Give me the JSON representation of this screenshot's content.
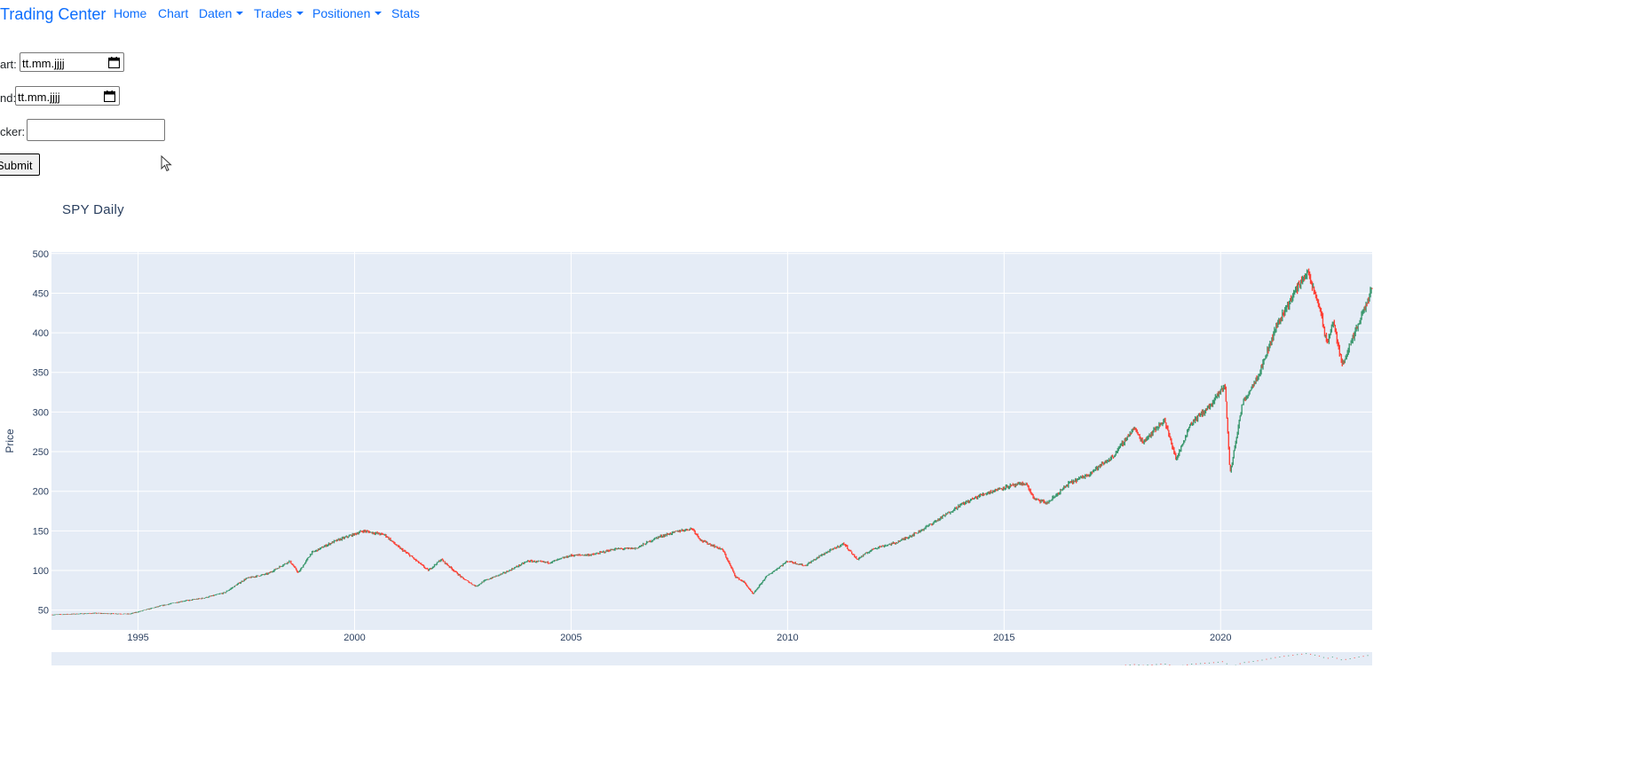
{
  "navbar": {
    "brand": "Trading Center",
    "items": [
      {
        "label": "Home",
        "dropdown": false
      },
      {
        "label": "Chart",
        "dropdown": false
      },
      {
        "label": "Daten",
        "dropdown": true
      },
      {
        "label": "Trades",
        "dropdown": true
      },
      {
        "label": "Positionen",
        "dropdown": true
      },
      {
        "label": "Stats",
        "dropdown": false
      }
    ]
  },
  "form": {
    "start_label": "art:",
    "start_value": "tt.mm.jjjj",
    "end_label": "nd:",
    "end_value": "tt.mm.jjjj",
    "ticker_label": "cker:",
    "ticker_value": "",
    "submit_label": "Submit"
  },
  "colors": {
    "increasing": "#3d9970",
    "decreasing": "#ff4136",
    "plot_bg": "#e5ecf6",
    "link": "#0d6efd",
    "axis_text": "#2a3f5f"
  },
  "chart_data": {
    "type": "candlestick",
    "title": "SPY Daily",
    "ylabel": "Price",
    "xlabel": "",
    "x_range": [
      1993.0,
      2023.5
    ],
    "ylim": [
      25,
      502
    ],
    "x_ticks": [
      {
        "value": 1995,
        "label": "1995"
      },
      {
        "value": 2000,
        "label": "2000"
      },
      {
        "value": 2005,
        "label": "2005"
      },
      {
        "value": 2010,
        "label": "2010"
      },
      {
        "value": 2015,
        "label": "2015"
      },
      {
        "value": 2020,
        "label": "2020"
      }
    ],
    "y_ticks": [
      50,
      100,
      150,
      200,
      250,
      300,
      350,
      400,
      450,
      500
    ],
    "grid": true,
    "legend": false,
    "rangeslider": true,
    "price_path": [
      [
        1993.0,
        44
      ],
      [
        1994.0,
        46
      ],
      [
        1994.8,
        45
      ],
      [
        1995.5,
        55
      ],
      [
        1996.0,
        61
      ],
      [
        1996.5,
        65
      ],
      [
        1997.0,
        72
      ],
      [
        1997.5,
        90
      ],
      [
        1998.0,
        96
      ],
      [
        1998.5,
        112
      ],
      [
        1998.7,
        97
      ],
      [
        1999.0,
        122
      ],
      [
        1999.5,
        136
      ],
      [
        1999.9,
        144
      ],
      [
        2000.2,
        150
      ],
      [
        2000.7,
        145
      ],
      [
        2001.0,
        130
      ],
      [
        2001.3,
        118
      ],
      [
        2001.7,
        100
      ],
      [
        2002.0,
        114
      ],
      [
        2002.5,
        90
      ],
      [
        2002.8,
        80
      ],
      [
        2003.0,
        87
      ],
      [
        2003.5,
        98
      ],
      [
        2004.0,
        112
      ],
      [
        2004.5,
        110
      ],
      [
        2005.0,
        119
      ],
      [
        2005.5,
        120
      ],
      [
        2006.0,
        127
      ],
      [
        2006.5,
        128
      ],
      [
        2007.0,
        142
      ],
      [
        2007.5,
        150
      ],
      [
        2007.8,
        153
      ],
      [
        2008.0,
        138
      ],
      [
        2008.5,
        126
      ],
      [
        2008.8,
        92
      ],
      [
        2009.0,
        85
      ],
      [
        2009.2,
        70
      ],
      [
        2009.5,
        92
      ],
      [
        2010.0,
        112
      ],
      [
        2010.4,
        106
      ],
      [
        2010.8,
        120
      ],
      [
        2011.3,
        134
      ],
      [
        2011.6,
        114
      ],
      [
        2012.0,
        128
      ],
      [
        2012.5,
        135
      ],
      [
        2013.0,
        148
      ],
      [
        2013.5,
        165
      ],
      [
        2014.0,
        183
      ],
      [
        2014.5,
        196
      ],
      [
        2015.0,
        205
      ],
      [
        2015.5,
        210
      ],
      [
        2015.7,
        190
      ],
      [
        2016.0,
        185
      ],
      [
        2016.5,
        210
      ],
      [
        2016.9,
        220
      ],
      [
        2017.5,
        243
      ],
      [
        2018.0,
        280
      ],
      [
        2018.2,
        262
      ],
      [
        2018.7,
        290
      ],
      [
        2018.98,
        240
      ],
      [
        2019.3,
        285
      ],
      [
        2019.8,
        310
      ],
      [
        2020.1,
        335
      ],
      [
        2020.22,
        222
      ],
      [
        2020.5,
        310
      ],
      [
        2020.9,
        350
      ],
      [
        2021.3,
        410
      ],
      [
        2021.8,
        460
      ],
      [
        2022.0,
        477
      ],
      [
        2022.3,
        430
      ],
      [
        2022.45,
        385
      ],
      [
        2022.6,
        415
      ],
      [
        2022.8,
        360
      ],
      [
        2023.0,
        385
      ],
      [
        2023.5,
        455
      ]
    ]
  }
}
